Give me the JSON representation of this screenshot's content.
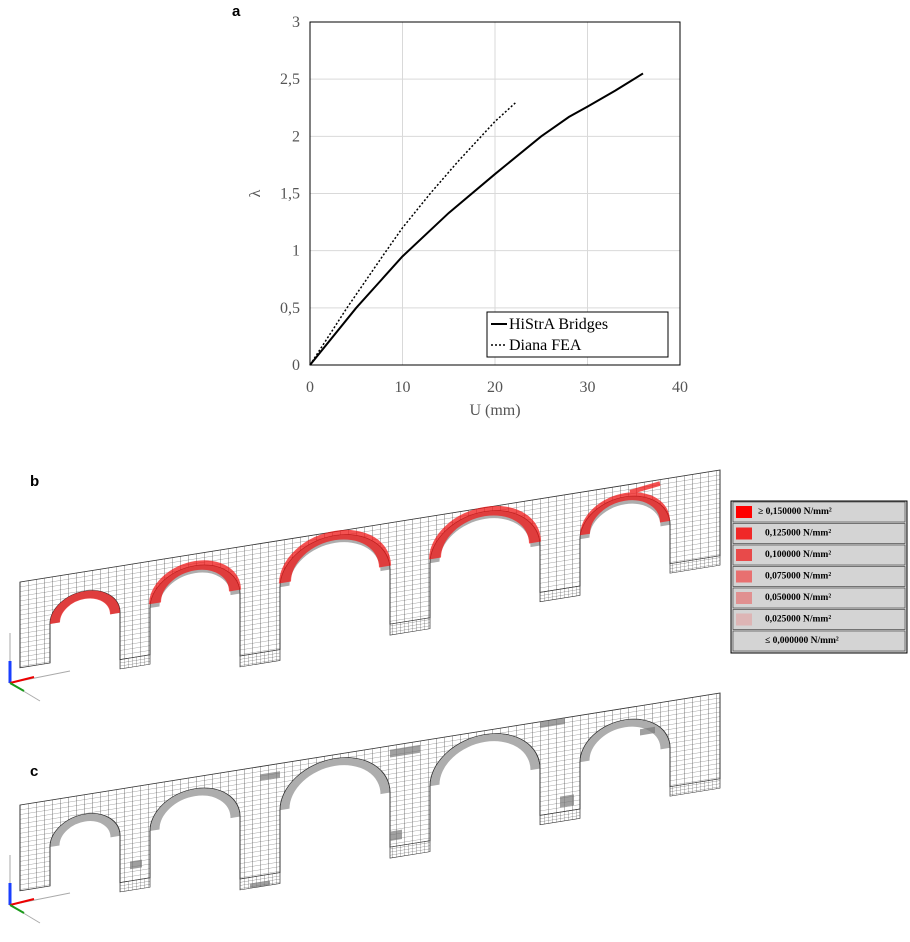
{
  "chart_data": {
    "type": "line",
    "x_label": "U (mm)",
    "y_label": "λ",
    "xlim": [
      0,
      40
    ],
    "xticks": [
      0,
      10,
      20,
      30,
      40
    ],
    "ylim": [
      0,
      3
    ],
    "yticks": [
      0,
      {
        "value": 0.5,
        "label": "0,5"
      },
      1,
      {
        "value": 1.5,
        "label": "1,5"
      },
      2,
      {
        "value": 2.5,
        "label": "2,5"
      },
      3
    ],
    "grid": true,
    "legend": "lower right",
    "series": [
      {
        "name": "HiStrA Bridges",
        "color": "#000000",
        "linestyle": "solid",
        "x": [
          0,
          5,
          10,
          15,
          20,
          25,
          28,
          30,
          33,
          36
        ],
        "values": [
          0,
          0.5,
          0.95,
          1.33,
          1.67,
          2.0,
          2.17,
          2.26,
          2.4,
          2.55
        ]
      },
      {
        "name": "Diana FEA",
        "color": "#000000",
        "linestyle": "dotted",
        "x": [
          0,
          4,
          8,
          10,
          13,
          16,
          20,
          22.3
        ],
        "values": [
          0,
          0.5,
          0.97,
          1.2,
          1.5,
          1.78,
          2.13,
          2.3
        ]
      }
    ]
  },
  "panel_labels": [
    "a",
    "b",
    "c"
  ],
  "stress_legend": {
    "items": [
      {
        "label": "≥ 0,150000 N/mm²",
        "color": "#ff0000"
      },
      {
        "label": "0,125000 N/mm²",
        "color": "#f02828"
      },
      {
        "label": "0,100000 N/mm²",
        "color": "#e84a4a"
      },
      {
        "label": "0,075000 N/mm²",
        "color": "#e87070"
      },
      {
        "label": "0,050000 N/mm²",
        "color": "#e09090"
      },
      {
        "label": "0,025000 N/mm²",
        "color": "#ddb5b5"
      },
      {
        "label": "≤ 0,000000 N/mm²"
      }
    ]
  }
}
